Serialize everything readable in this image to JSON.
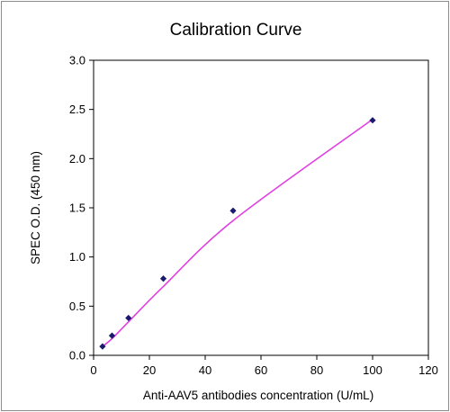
{
  "chart_data": {
    "type": "scatter",
    "title": "Calibration Curve",
    "xlabel": "Anti-AAV5 antibodies concentration (U/mL)",
    "ylabel": "SPEC  O.D.  (450 nm)",
    "xlim": [
      0,
      120
    ],
    "ylim": [
      0,
      3.0
    ],
    "xticks": [
      "0",
      "20",
      "40",
      "60",
      "80",
      "100",
      "120"
    ],
    "yticks": [
      "0.0",
      "0.5",
      "1.0",
      "1.5",
      "2.0",
      "2.5",
      "3.0"
    ],
    "grid": false,
    "legend": "none",
    "series": [
      {
        "x": [
          3.2,
          6.6,
          12.5,
          25,
          50,
          100
        ],
        "y": [
          0.09,
          0.2,
          0.38,
          0.78,
          1.47,
          2.39
        ],
        "marker": "diamond",
        "marker_color": "#1a1a6e"
      }
    ],
    "fit": {
      "type": "power",
      "x": [
        3.2,
        6.6,
        12.5,
        25,
        50,
        100
      ],
      "y": [
        0.09,
        0.17,
        0.34,
        0.7,
        1.37,
        2.4
      ],
      "color": "#e040e0"
    }
  }
}
